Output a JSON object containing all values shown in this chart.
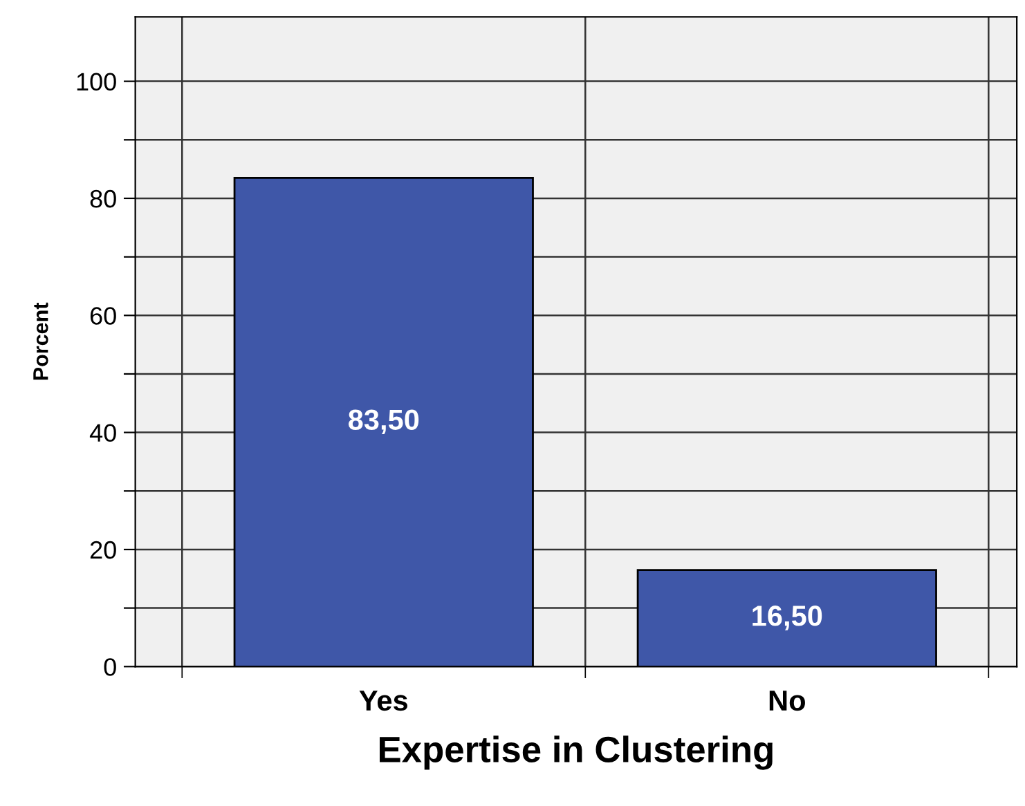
{
  "chart_data": {
    "type": "bar",
    "xlabel": "Expertise in Clustering",
    "ylabel": "Porcent",
    "categories": [
      "Yes",
      "No"
    ],
    "series": [
      {
        "color": "#3f57a8",
        "values": [
          83.5,
          16.5
        ],
        "value_labels": [
          "83,50",
          "16,50"
        ]
      }
    ],
    "ylim": [
      0,
      111
    ],
    "yticks": [
      0,
      {
        "value": 10,
        "label": null
      },
      20,
      {
        "value": 30,
        "label": null
      },
      40,
      {
        "value": 50,
        "label": null
      },
      60,
      {
        "value": 70,
        "label": null
      },
      80,
      {
        "value": 90,
        "label": null
      },
      100
    ],
    "grid": true
  }
}
